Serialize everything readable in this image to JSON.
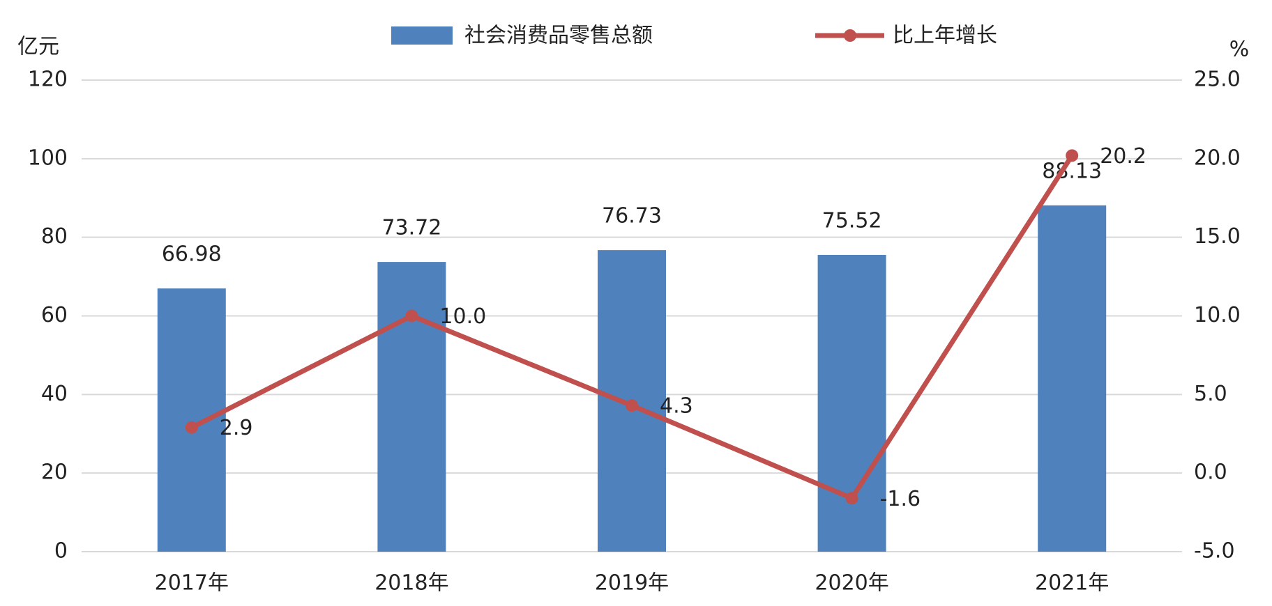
{
  "chart_data": {
    "type": "bar_line",
    "y_label": "亿元",
    "y2_label": "%",
    "categories": [
      "2017年",
      "2018年",
      "2019年",
      "2020年",
      "2021年"
    ],
    "series": [
      {
        "name": "社会消费品零售总额",
        "color": "#4f81bd",
        "type": "bar",
        "values": [
          66.98,
          73.72,
          76.73,
          75.52,
          88.13
        ]
      },
      {
        "name": "比上年增长",
        "color": "#c0504d",
        "type": "line",
        "axis": "y2",
        "values": [
          2.9,
          10.0,
          4.3,
          -1.6,
          20.2
        ],
        "value_labels": [
          "2.9",
          "10.0",
          "4.3",
          "-1.6",
          "20.2"
        ]
      }
    ],
    "ylim": [
      0,
      120
    ],
    "yticks": [
      0,
      20,
      40,
      60,
      80,
      100,
      120
    ],
    "y2lim": [
      -5,
      25
    ],
    "y2ticks": [
      {
        "value": -5,
        "label": "-5.0"
      },
      {
        "value": 0,
        "label": "0.0"
      },
      {
        "value": 5,
        "label": "5.0"
      },
      {
        "value": 10,
        "label": "10.0"
      },
      {
        "value": 15,
        "label": "15.0"
      },
      {
        "value": 20,
        "label": "20.0"
      },
      {
        "value": 25,
        "label": "25.0"
      }
    ],
    "grid": true
  }
}
